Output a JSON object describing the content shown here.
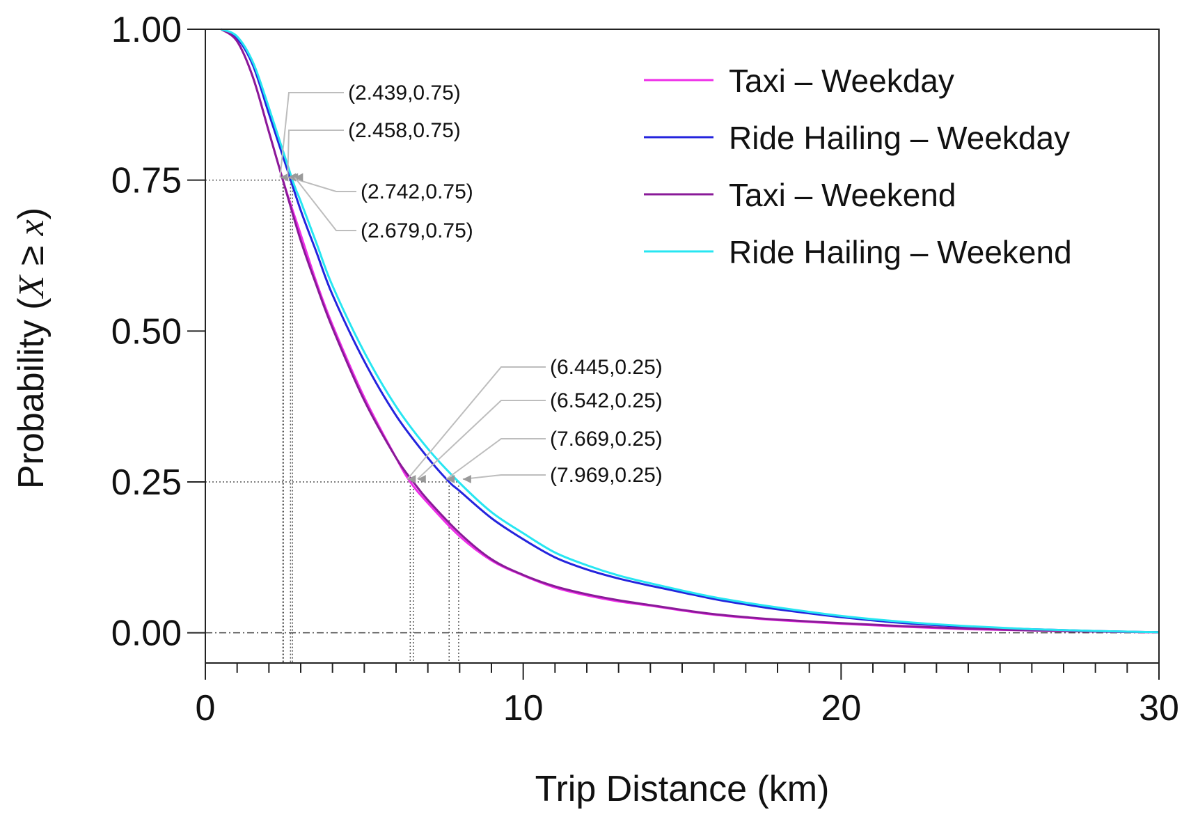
{
  "chart_data": {
    "type": "line",
    "xlabel": "Trip Distance (km)",
    "ylabel_prefix": "Probability (",
    "ylabel_var": "X",
    "ylabel_op": " ≥ ",
    "ylabel_var2": "x",
    "ylabel_suffix": ")",
    "xlim": [
      0,
      30
    ],
    "ylim": [
      -0.05,
      1.0
    ],
    "xticks": [
      0,
      10,
      20,
      30
    ],
    "xtick_labels": [
      "0",
      "10",
      "20",
      "30"
    ],
    "xminor_step": 1,
    "yticks": [
      0.0,
      0.25,
      0.5,
      0.75,
      1.0
    ],
    "ytick_labels": [
      "0.00",
      "0.25",
      "0.50",
      "0.75",
      "1.00"
    ],
    "legend_position": "top-right",
    "series": [
      {
        "name": "Taxi – Weekday",
        "color": "#ee2ee8",
        "x": [
          0.5,
          1,
          1.5,
          2,
          2.5,
          3,
          3.5,
          4,
          5,
          6,
          6.445,
          7,
          8,
          9,
          10,
          11,
          12,
          13,
          14,
          15,
          16,
          17,
          18,
          20,
          22,
          24,
          26,
          28,
          30
        ],
        "y": [
          1.0,
          0.98,
          0.92,
          0.83,
          0.74,
          0.66,
          0.58,
          0.51,
          0.39,
          0.29,
          0.25,
          0.215,
          0.16,
          0.12,
          0.095,
          0.075,
          0.062,
          0.052,
          0.045,
          0.037,
          0.03,
          0.025,
          0.021,
          0.015,
          0.01,
          0.006,
          0.004,
          0.002,
          0.001
        ]
      },
      {
        "name": "Ride Hailing – Weekday",
        "color": "#2424dd",
        "x": [
          0.5,
          1,
          1.5,
          2,
          2.5,
          3,
          3.5,
          4,
          5,
          6,
          7,
          7.669,
          8,
          9,
          10,
          11,
          12,
          13,
          14,
          15,
          16,
          17,
          18,
          20,
          22,
          24,
          26,
          28,
          30
        ],
        "y": [
          1.0,
          0.985,
          0.94,
          0.86,
          0.78,
          0.7,
          0.63,
          0.56,
          0.45,
          0.36,
          0.29,
          0.25,
          0.235,
          0.19,
          0.155,
          0.125,
          0.105,
          0.09,
          0.078,
          0.067,
          0.056,
          0.047,
          0.039,
          0.026,
          0.016,
          0.01,
          0.006,
          0.003,
          0.001
        ]
      },
      {
        "name": "Taxi – Weekend",
        "color": "#8a1a98",
        "x": [
          0.5,
          1,
          1.5,
          2,
          2.439,
          3,
          3.5,
          4,
          5,
          6,
          6.542,
          7,
          8,
          9,
          10,
          11,
          12,
          13,
          14,
          15,
          16,
          17,
          18,
          20,
          22,
          24,
          26,
          28,
          30
        ],
        "y": [
          1.0,
          0.98,
          0.92,
          0.83,
          0.75,
          0.65,
          0.575,
          0.505,
          0.385,
          0.29,
          0.25,
          0.22,
          0.165,
          0.122,
          0.096,
          0.077,
          0.064,
          0.054,
          0.046,
          0.038,
          0.031,
          0.026,
          0.022,
          0.016,
          0.011,
          0.007,
          0.004,
          0.002,
          0.001
        ]
      },
      {
        "name": "Ride Hailing – Weekend",
        "color": "#27e6f2",
        "x": [
          0.5,
          1,
          1.5,
          2,
          2.742,
          3,
          3.5,
          4,
          5,
          6,
          7,
          7.969,
          9,
          10,
          11,
          12,
          13,
          14,
          15,
          16,
          17,
          18,
          20,
          22,
          24,
          26,
          28,
          30
        ],
        "y": [
          1.0,
          0.988,
          0.945,
          0.87,
          0.75,
          0.715,
          0.645,
          0.575,
          0.465,
          0.375,
          0.305,
          0.25,
          0.2,
          0.165,
          0.133,
          0.112,
          0.095,
          0.082,
          0.07,
          0.059,
          0.05,
          0.042,
          0.028,
          0.018,
          0.011,
          0.006,
          0.003,
          0.001
        ]
      }
    ],
    "annotations": [
      {
        "label": "(2.439,0.75)",
        "x": 2.439,
        "y": 0.75
      },
      {
        "label": "(2.458,0.75)",
        "x": 2.458,
        "y": 0.75
      },
      {
        "label": "(2.742,0.75)",
        "x": 2.742,
        "y": 0.75
      },
      {
        "label": "(2.679,0.75)",
        "x": 2.679,
        "y": 0.75
      },
      {
        "label": "(6.445,0.25)",
        "x": 6.445,
        "y": 0.25
      },
      {
        "label": "(6.542,0.25)",
        "x": 6.542,
        "y": 0.25
      },
      {
        "label": "(7.669,0.25)",
        "x": 7.669,
        "y": 0.25
      },
      {
        "label": "(7.969,0.25)",
        "x": 7.969,
        "y": 0.25
      }
    ]
  }
}
